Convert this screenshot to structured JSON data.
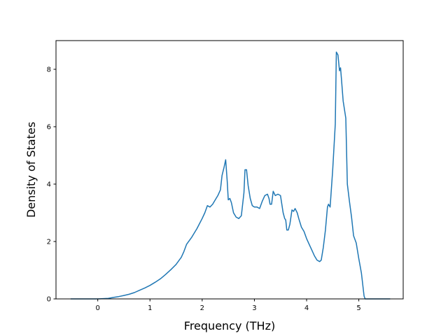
{
  "chart_data": {
    "type": "line",
    "title": "",
    "xlabel": "Frequency (THz)",
    "ylabel": "Density of States",
    "xlim": [
      -0.8,
      5.85
    ],
    "ylim": [
      0,
      9.0
    ],
    "x_ticks": [
      0,
      1,
      2,
      3,
      4,
      5
    ],
    "x_tick_labels": [
      "0",
      "1",
      "2",
      "3",
      "4",
      "5"
    ],
    "y_ticks": [
      0,
      2,
      4,
      6,
      8
    ],
    "y_tick_labels": [
      "0",
      "2",
      "4",
      "6",
      "8"
    ],
    "grid": false,
    "legend": "none",
    "colors": {
      "line": "#1f77b4"
    },
    "series": [
      {
        "x": [
          -0.52,
          -0.3,
          0.0,
          0.2,
          0.3,
          0.4,
          0.5,
          0.6,
          0.7,
          0.8,
          0.9,
          1.0,
          1.1,
          1.2,
          1.3,
          1.4,
          1.5,
          1.6,
          1.65,
          1.7,
          1.8,
          1.9,
          2.0,
          2.05,
          2.1,
          2.15,
          2.2,
          2.25,
          2.3,
          2.35,
          2.38,
          2.42,
          2.45,
          2.48,
          2.5,
          2.53,
          2.56,
          2.6,
          2.65,
          2.7,
          2.75,
          2.8,
          2.82,
          2.85,
          2.88,
          2.92,
          2.96,
          3.0,
          3.05,
          3.1,
          3.15,
          3.2,
          3.25,
          3.28,
          3.3,
          3.33,
          3.36,
          3.4,
          3.45,
          3.5,
          3.55,
          3.58,
          3.6,
          3.62,
          3.65,
          3.68,
          3.72,
          3.75,
          3.78,
          3.82,
          3.85,
          3.9,
          3.95,
          4.0,
          4.05,
          4.1,
          4.15,
          4.2,
          4.25,
          4.28,
          4.32,
          4.36,
          4.4,
          4.42,
          4.45,
          4.5,
          4.55,
          4.57,
          4.6,
          4.63,
          4.65,
          4.67,
          4.7,
          4.75,
          4.78,
          4.82,
          4.86,
          4.9,
          4.95,
          5.0,
          5.05,
          5.1,
          5.12,
          5.2,
          5.4,
          5.6
        ],
        "y": [
          0.0,
          0.0,
          0.0,
          0.02,
          0.05,
          0.08,
          0.12,
          0.16,
          0.22,
          0.3,
          0.38,
          0.47,
          0.58,
          0.7,
          0.85,
          1.02,
          1.2,
          1.45,
          1.65,
          1.9,
          2.15,
          2.45,
          2.8,
          3.0,
          3.25,
          3.2,
          3.3,
          3.45,
          3.6,
          3.8,
          4.3,
          4.6,
          4.85,
          4.1,
          3.45,
          3.5,
          3.35,
          3.0,
          2.85,
          2.8,
          2.9,
          3.7,
          4.5,
          4.5,
          3.95,
          3.5,
          3.25,
          3.2,
          3.2,
          3.15,
          3.4,
          3.6,
          3.65,
          3.5,
          3.3,
          3.3,
          3.75,
          3.6,
          3.65,
          3.6,
          3.0,
          2.8,
          2.75,
          2.4,
          2.4,
          2.6,
          3.1,
          3.05,
          3.15,
          3.0,
          2.8,
          2.5,
          2.35,
          2.1,
          1.9,
          1.7,
          1.5,
          1.35,
          1.3,
          1.35,
          1.8,
          2.4,
          3.2,
          3.3,
          3.2,
          4.5,
          6.1,
          8.6,
          8.5,
          7.95,
          8.05,
          7.6,
          6.9,
          6.3,
          4.0,
          3.4,
          2.85,
          2.2,
          1.95,
          1.4,
          0.9,
          0.1,
          0.0,
          0.0,
          0.0,
          0.0
        ]
      }
    ]
  }
}
